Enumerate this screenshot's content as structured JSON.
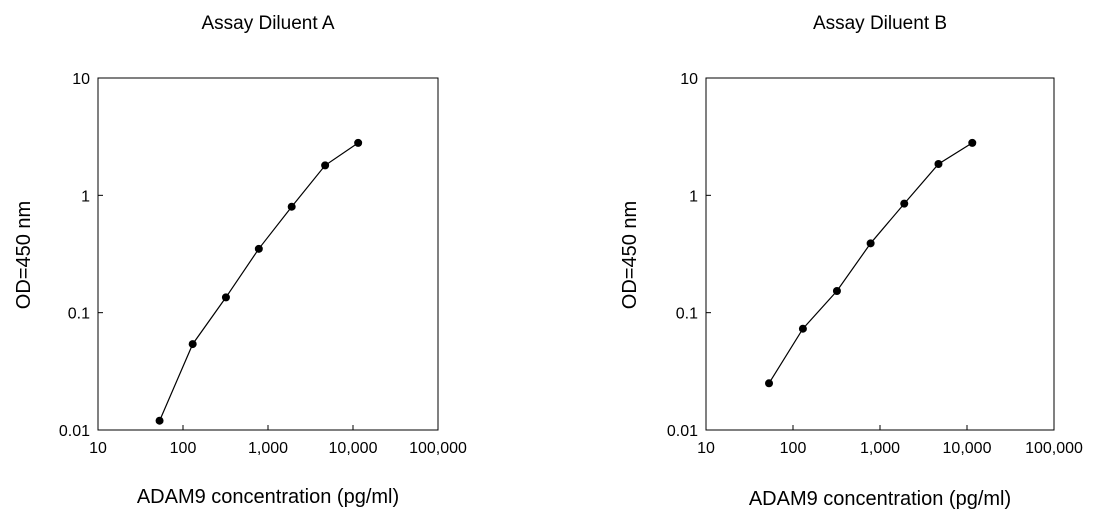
{
  "chart_data": [
    {
      "type": "line",
      "title": "Assay Diluent A",
      "xlabel": "ADAM9 concentration (pg/ml)",
      "ylabel": "OD=450 nm",
      "xscale": "log",
      "yscale": "log",
      "xlim": [
        10,
        100000
      ],
      "ylim": [
        0.01,
        10
      ],
      "xticks": [
        10,
        100,
        1000,
        10000,
        100000
      ],
      "xtick_labels": [
        "10",
        "100",
        "1,000",
        "10,000",
        "100,000"
      ],
      "yticks": [
        0.01,
        0.1,
        1,
        10
      ],
      "ytick_labels": [
        "0.01",
        "0.1",
        "1",
        "10"
      ],
      "grid": false,
      "series": [
        {
          "x": [
            53,
            130,
            320,
            780,
            1900,
            4700,
            11500
          ],
          "y": [
            0.012,
            0.054,
            0.135,
            0.35,
            0.8,
            1.8,
            2.8
          ]
        }
      ]
    },
    {
      "type": "line",
      "title": "Assay Diluent B",
      "xlabel": "ADAM9 concentration (pg/ml)",
      "ylabel": "OD=450 nm",
      "xscale": "log",
      "yscale": "log",
      "xlim": [
        10,
        100000
      ],
      "ylim": [
        0.01,
        10
      ],
      "xticks": [
        10,
        100,
        1000,
        10000,
        100000
      ],
      "xtick_labels": [
        "10",
        "100",
        "1,000",
        "10,000",
        "100,000"
      ],
      "yticks": [
        0.01,
        0.1,
        1,
        10
      ],
      "ytick_labels": [
        "0.01",
        "0.1",
        "1",
        "10"
      ],
      "grid": false,
      "series": [
        {
          "x": [
            53,
            130,
            320,
            780,
            1900,
            4700,
            11500
          ],
          "y": [
            0.025,
            0.073,
            0.153,
            0.39,
            0.85,
            1.85,
            2.8
          ]
        }
      ]
    }
  ]
}
